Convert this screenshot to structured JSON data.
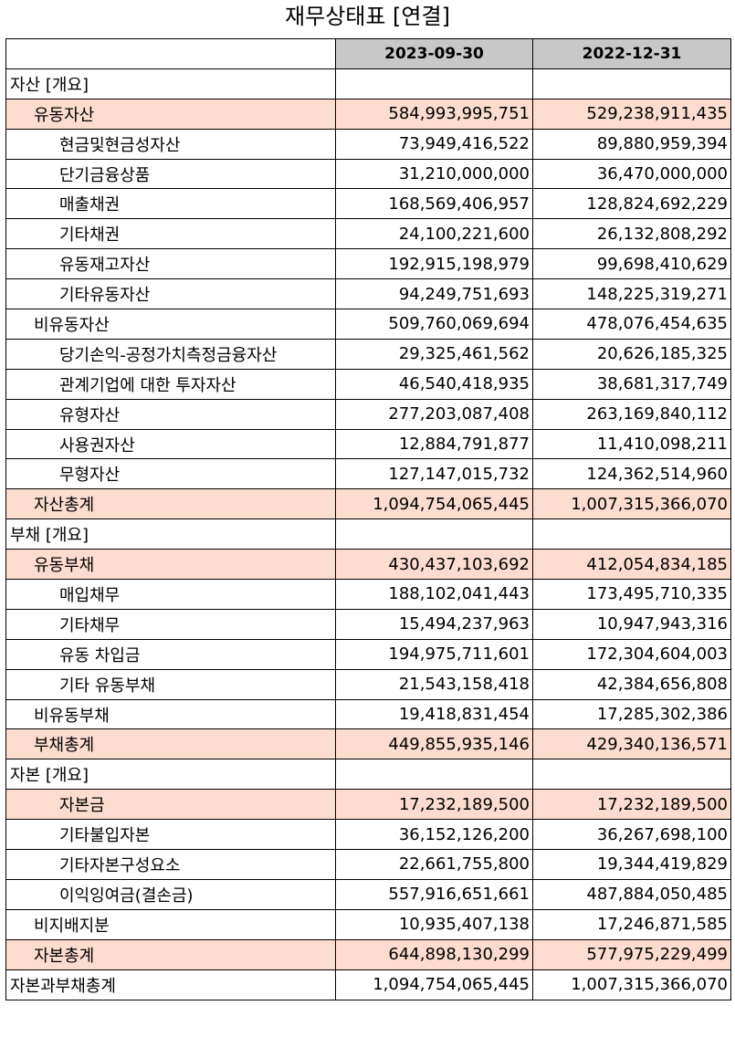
{
  "title": "재무상태표 [연결]",
  "columns": [
    "",
    "2023-09-30",
    "2022-12-31"
  ],
  "rows": [
    {
      "label": "자산 [개요]",
      "level": 0,
      "highlight": false,
      "v1": "",
      "v2": ""
    },
    {
      "label": "유동자산",
      "level": 1,
      "highlight": true,
      "v1": "584,993,995,751",
      "v2": "529,238,911,435"
    },
    {
      "label": "현금및현금성자산",
      "level": 2,
      "highlight": false,
      "v1": "73,949,416,522",
      "v2": "89,880,959,394"
    },
    {
      "label": "단기금융상품",
      "level": 2,
      "highlight": false,
      "v1": "31,210,000,000",
      "v2": "36,470,000,000"
    },
    {
      "label": "매출채권",
      "level": 2,
      "highlight": false,
      "v1": "168,569,406,957",
      "v2": "128,824,692,229"
    },
    {
      "label": "기타채권",
      "level": 2,
      "highlight": false,
      "v1": "24,100,221,600",
      "v2": "26,132,808,292"
    },
    {
      "label": "유동재고자산",
      "level": 2,
      "highlight": false,
      "v1": "192,915,198,979",
      "v2": "99,698,410,629"
    },
    {
      "label": "기타유동자산",
      "level": 2,
      "highlight": false,
      "v1": "94,249,751,693",
      "v2": "148,225,319,271"
    },
    {
      "label": "비유동자산",
      "level": 1,
      "highlight": false,
      "v1": "509,760,069,694",
      "v2": "478,076,454,635"
    },
    {
      "label": "당기손익-공정가치측정금융자산",
      "level": 2,
      "highlight": false,
      "v1": "29,325,461,562",
      "v2": "20,626,185,325"
    },
    {
      "label": "관계기업에 대한 투자자산",
      "level": 2,
      "highlight": false,
      "v1": "46,540,418,935",
      "v2": "38,681,317,749"
    },
    {
      "label": "유형자산",
      "level": 2,
      "highlight": false,
      "v1": "277,203,087,408",
      "v2": "263,169,840,112"
    },
    {
      "label": "사용권자산",
      "level": 2,
      "highlight": false,
      "v1": "12,884,791,877",
      "v2": "11,410,098,211"
    },
    {
      "label": "무형자산",
      "level": 2,
      "highlight": false,
      "v1": "127,147,015,732",
      "v2": "124,362,514,960"
    },
    {
      "label": "자산총계",
      "level": 1,
      "highlight": true,
      "v1": "1,094,754,065,445",
      "v2": "1,007,315,366,070"
    },
    {
      "label": "부채 [개요]",
      "level": 0,
      "highlight": false,
      "v1": "",
      "v2": ""
    },
    {
      "label": "유동부채",
      "level": 1,
      "highlight": true,
      "v1": "430,437,103,692",
      "v2": "412,054,834,185"
    },
    {
      "label": "매입채무",
      "level": 2,
      "highlight": false,
      "v1": "188,102,041,443",
      "v2": "173,495,710,335"
    },
    {
      "label": "기타채무",
      "level": 2,
      "highlight": false,
      "v1": "15,494,237,963",
      "v2": "10,947,943,316"
    },
    {
      "label": "유동 차입금",
      "level": 2,
      "highlight": false,
      "v1": "194,975,711,601",
      "v2": "172,304,604,003"
    },
    {
      "label": "기타 유동부채",
      "level": 2,
      "highlight": false,
      "v1": "21,543,158,418",
      "v2": "42,384,656,808"
    },
    {
      "label": "비유동부채",
      "level": 1,
      "highlight": false,
      "v1": "19,418,831,454",
      "v2": "17,285,302,386"
    },
    {
      "label": "부채총계",
      "level": 1,
      "highlight": true,
      "v1": "449,855,935,146",
      "v2": "429,340,136,571"
    },
    {
      "label": "자본 [개요]",
      "level": 0,
      "highlight": false,
      "v1": "",
      "v2": ""
    },
    {
      "label": "자본금",
      "level": 2,
      "highlight": true,
      "v1": "17,232,189,500",
      "v2": "17,232,189,500"
    },
    {
      "label": "기타불입자본",
      "level": 2,
      "highlight": false,
      "v1": "36,152,126,200",
      "v2": "36,267,698,100"
    },
    {
      "label": "기타자본구성요소",
      "level": 2,
      "highlight": false,
      "v1": "22,661,755,800",
      "v2": "19,344,419,829"
    },
    {
      "label": "이익잉여금(결손금)",
      "level": 2,
      "highlight": false,
      "v1": "557,916,651,661",
      "v2": "487,884,050,485"
    },
    {
      "label": "비지배지분",
      "level": 1,
      "highlight": false,
      "v1": "10,935,407,138",
      "v2": "17,246,871,585"
    },
    {
      "label": "자본총계",
      "level": 1,
      "highlight": true,
      "v1": "644,898,130,299",
      "v2": "577,975,229,499"
    },
    {
      "label": "자본과부채총계",
      "level": 0,
      "highlight": false,
      "v1": "1,094,754,065,445",
      "v2": "1,007,315,366,070"
    }
  ],
  "colors": {
    "header_bg": "#c8c8c8",
    "highlight_bg": "#fcdccf"
  }
}
